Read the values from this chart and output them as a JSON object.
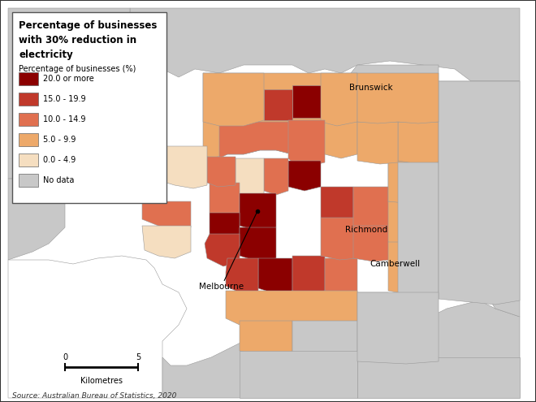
{
  "title": "Percentage of businesses\nwith 30% reduction in\nelectricity",
  "legend_title": "Percentage of businesses (%)",
  "legend_labels": [
    "20.0 or more",
    "15.0 - 19.9",
    "10.0 - 14.9",
    "5.0 - 9.9",
    "0.0 - 4.9",
    "No data"
  ],
  "legend_colors": [
    "#8B0000",
    "#C0392B",
    "#E07050",
    "#EDA96A",
    "#F5DEC0",
    "#C8C8C8"
  ],
  "source_text": "Source: Australian Bureau of Statistics, 2020",
  "scalebar_label": "Kilometres",
  "label_brunswick": "Brunswick",
  "label_richmond": "Richmond",
  "label_melbourne": "Melbourne",
  "label_camberwell": "Camberwell",
  "border_color": "#999999",
  "fig_bg": "#FFFFFF",
  "map_bg": "#C8C8C8"
}
